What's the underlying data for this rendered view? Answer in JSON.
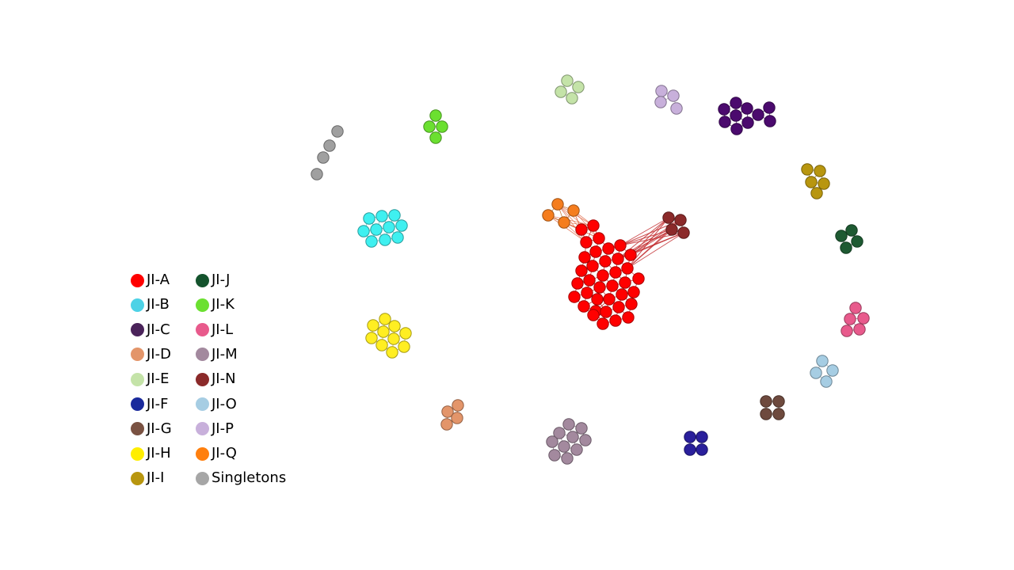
{
  "legend": {
    "items": [
      {
        "label": "JI-A",
        "color": "#ff0000"
      },
      {
        "label": "JI-B",
        "color": "#4dd2e6"
      },
      {
        "label": "JI-C",
        "color": "#4a235a"
      },
      {
        "label": "JI-D",
        "color": "#e3956a"
      },
      {
        "label": "JI-E",
        "color": "#c4e3a8"
      },
      {
        "label": "JI-F",
        "color": "#1a2a9c"
      },
      {
        "label": "JI-G",
        "color": "#7a5242"
      },
      {
        "label": "JI-H",
        "color": "#ffee00"
      },
      {
        "label": "JI-I",
        "color": "#b8960f"
      },
      {
        "label": "JI-J",
        "color": "#14532d"
      },
      {
        "label": "JI-K",
        "color": "#6be030"
      },
      {
        "label": "JI-L",
        "color": "#e85a8c"
      },
      {
        "label": "JI-M",
        "color": "#a3899e"
      },
      {
        "label": "JI-N",
        "color": "#8b2a2a"
      },
      {
        "label": "JI-O",
        "color": "#a6cde3"
      },
      {
        "label": "JI-P",
        "color": "#c8b0db"
      },
      {
        "label": "JI-Q",
        "color": "#ff7f0e"
      },
      {
        "label": "Singletons",
        "color": "#a6a6a6"
      }
    ]
  },
  "node_colors": {
    "JI-A": "#ff0000",
    "JI-B": "#3ff0f0",
    "JI-C": "#4b0a6e",
    "JI-D": "#e3956a",
    "JI-E": "#c4e3a8",
    "JI-F": "#2a1f9c",
    "JI-G": "#6e4a3e",
    "JI-H": "#ffee22",
    "JI-I": "#b8960f",
    "JI-J": "#1e5a32",
    "JI-K": "#6be030",
    "JI-L": "#e85a8c",
    "JI-M": "#a3899e",
    "JI-N": "#8b2a2a",
    "JI-O": "#a6cde3",
    "JI-P": "#c8b0db",
    "JI-Q": "#f57d1e",
    "Singletons": "#a0a0a0"
  }
}
